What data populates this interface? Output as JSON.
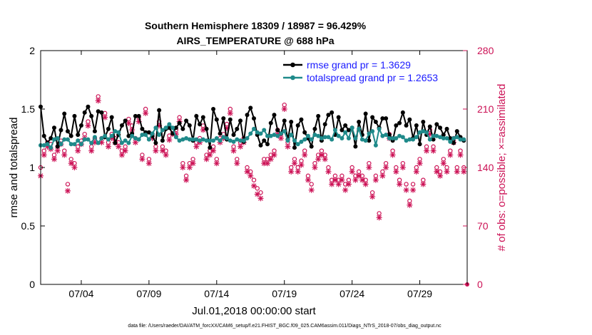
{
  "chart_data": {
    "type": "line",
    "title": "Southern Hemisphere 18309 / 18987 = 96.429%",
    "subtitle": "AIRS_TEMPERATURE @ 688 hPa",
    "xlabel": "Jul.01,2018 00:00:00 start",
    "ylabel_left": "rmse and totalspread",
    "ylabel_right": "# of obs: o=possible; ×=assimilated",
    "footnote": "data file: /Users/raeder/DAI/ATM_forcXX/CAM6_setup/f.e21.FHIST_BGC.f09_025.CAM6assim.011/Diags_NTrS_2018-07/obs_diag_output.nc",
    "x_range_days": [
      1,
      32.5
    ],
    "x_ticks": [
      {
        "day": 4,
        "label": "07/04"
      },
      {
        "day": 9,
        "label": "07/09"
      },
      {
        "day": 14,
        "label": "07/14"
      },
      {
        "day": 19,
        "label": "07/19"
      },
      {
        "day": 24,
        "label": "07/24"
      },
      {
        "day": 29,
        "label": "07/29"
      }
    ],
    "ylim_left": [
      0,
      2
    ],
    "yticks_left": [
      {
        "value": 0,
        "label": "0"
      },
      {
        "value": 0.5,
        "label": "0.5"
      },
      {
        "value": 1,
        "label": "1"
      },
      {
        "value": 1.5,
        "label": "1.5"
      },
      {
        "value": 2,
        "label": "2"
      }
    ],
    "ylim_right": [
      0,
      280
    ],
    "yticks_right": [
      {
        "value": 0,
        "label": "0"
      },
      {
        "value": 70,
        "label": "70"
      },
      {
        "value": 140,
        "label": "140"
      },
      {
        "value": 210,
        "label": "210"
      },
      {
        "value": 280,
        "label": "280"
      }
    ],
    "colors": {
      "rmse": "#000000",
      "spread": "#1f8a8a",
      "obs": "#cc1155",
      "legend_text": "#1a1aff"
    },
    "series": [
      {
        "name": "rmse grand pr = 1.3629",
        "axis": "left",
        "x_start_day": 1.0,
        "x_step_days": 0.25,
        "values": [
          1.52,
          1.27,
          1.21,
          1.25,
          1.34,
          1.18,
          1.32,
          1.46,
          1.31,
          1.27,
          1.44,
          1.28,
          1.36,
          1.47,
          1.52,
          1.44,
          1.31,
          1.48,
          1.47,
          1.26,
          1.33,
          1.43,
          1.21,
          1.28,
          1.36,
          1.4,
          1.27,
          1.29,
          1.44,
          1.44,
          1.33,
          1.3,
          1.3,
          1.27,
          1.21,
          1.49,
          1.23,
          1.33,
          1.34,
          1.29,
          1.34,
          1.38,
          1.33,
          1.4,
          1.36,
          1.23,
          1.44,
          1.37,
          1.43,
          1.33,
          1.17,
          1.5,
          1.41,
          1.29,
          1.42,
          1.24,
          1.41,
          1.28,
          1.33,
          1.4,
          1.22,
          1.45,
          1.51,
          1.42,
          1.28,
          1.19,
          1.23,
          1.2,
          1.38,
          1.45,
          1.32,
          1.29,
          1.4,
          1.24,
          1.39,
          1.17,
          1.36,
          1.41,
          1.3,
          1.25,
          1.18,
          1.33,
          1.44,
          1.23,
          1.37,
          1.45,
          1.47,
          1.28,
          1.43,
          1.32,
          1.36,
          1.32,
          1.34,
          1.18,
          1.39,
          1.28,
          1.46,
          1.23,
          1.43,
          1.39,
          1.34,
          1.42,
          1.42,
          1.28,
          1.23,
          1.36,
          1.38,
          1.47,
          1.36,
          1.41,
          1.25,
          1.36,
          1.2,
          1.39,
          1.28,
          1.35,
          1.24,
          1.37,
          1.34,
          1.28,
          1.33,
          1.25,
          1.21,
          1.31,
          1.26,
          1.23
        ]
      },
      {
        "name": "totalspread grand pr = 1.2653",
        "axis": "left",
        "x_start_day": 1.0,
        "x_step_days": 0.25,
        "values": [
          1.19,
          1.19,
          1.2,
          1.17,
          1.24,
          1.25,
          1.2,
          1.24,
          1.24,
          1.2,
          1.2,
          1.23,
          1.2,
          1.24,
          1.24,
          1.21,
          1.26,
          1.21,
          1.25,
          1.27,
          1.24,
          1.27,
          1.31,
          1.3,
          1.21,
          1.23,
          1.21,
          1.27,
          1.25,
          1.24,
          1.28,
          1.28,
          1.24,
          1.29,
          1.34,
          1.28,
          1.32,
          1.34,
          1.37,
          1.34,
          1.26,
          1.23,
          1.24,
          1.25,
          1.24,
          1.24,
          1.24,
          1.23,
          1.24,
          1.23,
          1.23,
          1.23,
          1.25,
          1.23,
          1.26,
          1.25,
          1.23,
          1.22,
          1.24,
          1.23,
          1.23,
          1.25,
          1.29,
          1.33,
          1.3,
          1.29,
          1.32,
          1.27,
          1.27,
          1.28,
          1.27,
          1.29,
          1.31,
          1.23,
          1.28,
          1.23,
          1.2,
          1.22,
          1.24,
          1.27,
          1.24,
          1.28,
          1.27,
          1.25,
          1.26,
          1.26,
          1.24,
          1.32,
          1.27,
          1.25,
          1.3,
          1.25,
          1.34,
          1.25,
          1.33,
          1.24,
          1.23,
          1.29,
          1.31,
          1.19,
          1.33,
          1.27,
          1.28,
          1.25,
          1.25,
          1.25,
          1.27,
          1.26,
          1.23,
          1.24,
          1.24,
          1.26,
          1.3,
          1.31,
          1.3,
          1.24,
          1.27,
          1.27,
          1.26,
          1.25,
          1.25,
          1.22,
          1.25,
          1.26,
          1.24,
          1.24
        ]
      },
      {
        "name": "obs possible (o)",
        "axis": "right",
        "x_start_day": 1.0,
        "x_step_days": 0.25,
        "values": [
          140,
          160,
          170,
          168,
          155,
          165,
          172,
          160,
          120,
          150,
          145,
          165,
          172,
          180,
          195,
          165,
          175,
          225,
          175,
          205,
          170,
          180,
          175,
          170,
          160,
          165,
          198,
          190,
          175,
          200,
          155,
          210,
          150,
          180,
          165,
          195,
          165,
          160,
          178,
          185,
          185,
          200,
          145,
          130,
          145,
          150,
          170,
          175,
          190,
          155,
          160,
          165,
          150,
          175,
          180,
          192,
          210,
          165,
          150,
          170,
          175,
          140,
          135,
          125,
          115,
          110,
          150,
          150,
          155,
          160,
          185,
          180,
          215,
          170,
          140,
          150,
          140,
          148,
          160,
          130,
          120,
          145,
          155,
          160,
          155,
          140,
          125,
          130,
          125,
          130,
          120,
          125,
          140,
          130,
          135,
          130,
          125,
          145,
          110,
          130,
          85,
          135,
          145,
          180,
          160,
          140,
          125,
          145,
          120,
          100,
          120,
          140,
          150,
          125,
          165,
          185,
          165,
          140,
          135,
          150,
          140,
          160,
          175,
          140,
          160,
          140
        ]
      },
      {
        "name": "obs assimilated (×)",
        "axis": "right",
        "x_start_day": 1.0,
        "x_step_days": 0.25,
        "values": [
          130,
          155,
          165,
          162,
          150,
          160,
          168,
          155,
          112,
          145,
          140,
          160,
          168,
          175,
          190,
          160,
          170,
          220,
          170,
          200,
          165,
          175,
          170,
          165,
          155,
          160,
          193,
          185,
          170,
          195,
          150,
          205,
          145,
          175,
          160,
          190,
          160,
          155,
          173,
          180,
          180,
          195,
          140,
          125,
          140,
          145,
          165,
          170,
          185,
          150,
          155,
          160,
          145,
          170,
          175,
          187,
          205,
          160,
          145,
          165,
          170,
          135,
          130,
          118,
          108,
          103,
          145,
          145,
          150,
          155,
          180,
          175,
          210,
          165,
          135,
          145,
          135,
          143,
          155,
          125,
          113,
          140,
          150,
          155,
          150,
          135,
          120,
          125,
          120,
          125,
          113,
          120,
          135,
          125,
          130,
          125,
          120,
          140,
          105,
          125,
          80,
          130,
          140,
          175,
          155,
          135,
          120,
          140,
          113,
          95,
          113,
          135,
          145,
          120,
          160,
          180,
          160,
          135,
          130,
          145,
          135,
          155,
          170,
          135,
          155,
          135
        ]
      }
    ]
  }
}
